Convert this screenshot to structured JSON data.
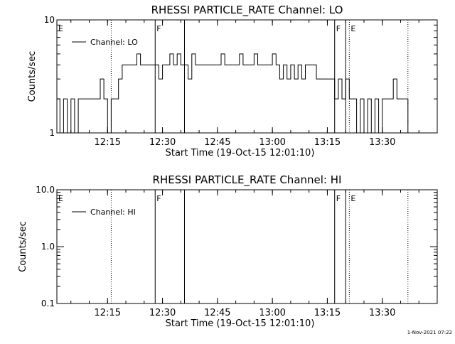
{
  "footer": {
    "timestamp": "1-Nov-2021 07:22"
  },
  "chart_data": [
    {
      "type": "line",
      "title": "RHESSI PARTICLE_RATE Channel: LO",
      "xlabel": "Start Time (19-Oct-15 12:01:10)",
      "ylabel": "Counts/sec",
      "y_scale": "log",
      "ylim": [
        1,
        10
      ],
      "y_ticks": [
        {
          "value": 1,
          "label": "1"
        },
        {
          "value": 10,
          "label": "10"
        }
      ],
      "xlim": [
        "12:01:10",
        "13:45:00"
      ],
      "x_ticks": [
        "12:15",
        "12:30",
        "12:45",
        "13:00",
        "13:15",
        "13:30"
      ],
      "legend": {
        "placement": "top-left",
        "entries": [
          "Channel: LO"
        ]
      },
      "flag_lines": [
        {
          "time": "12:01:10",
          "label": "E",
          "style": "none"
        },
        {
          "time": "12:16:00",
          "label": "",
          "style": "dotted"
        },
        {
          "time": "12:28:00",
          "label": "F",
          "style": "solid"
        },
        {
          "time": "12:36:00",
          "label": "",
          "style": "solid"
        },
        {
          "time": "13:17:00",
          "label": "F",
          "style": "solid"
        },
        {
          "time": "13:20:00",
          "label": "",
          "style": "solid"
        },
        {
          "time": "13:21:00",
          "label": "E",
          "style": "dotted"
        },
        {
          "time": "13:37:00",
          "label": "",
          "style": "dotted"
        }
      ],
      "series": [
        {
          "name": "Channel: LO",
          "x": [
            "12:01:10",
            "12:02:00",
            "12:03:00",
            "12:04:00",
            "12:05:00",
            "12:06:00",
            "12:07:00",
            "12:08:00",
            "12:09:00",
            "12:10:00",
            "12:11:00",
            "12:12:00",
            "12:13:00",
            "12:14:00",
            "12:15:00",
            "12:16:00",
            "12:17:00",
            "12:18:00",
            "12:19:00",
            "12:20:00",
            "12:21:00",
            "12:22:00",
            "12:23:00",
            "12:24:00",
            "12:25:00",
            "12:26:00",
            "12:27:00",
            "12:28:00",
            "12:29:00",
            "12:30:00",
            "12:31:00",
            "12:32:00",
            "12:33:00",
            "12:34:00",
            "12:35:00",
            "12:36:00",
            "12:37:00",
            "12:38:00",
            "12:39:00",
            "12:40:00",
            "12:41:00",
            "12:42:00",
            "12:43:00",
            "12:44:00",
            "12:45:00",
            "12:46:00",
            "12:47:00",
            "12:48:00",
            "12:49:00",
            "12:50:00",
            "12:51:00",
            "12:52:00",
            "12:53:00",
            "12:54:00",
            "12:55:00",
            "12:56:00",
            "12:57:00",
            "12:58:00",
            "12:59:00",
            "13:00:00",
            "13:01:00",
            "13:02:00",
            "13:03:00",
            "13:04:00",
            "13:05:00",
            "13:06:00",
            "13:07:00",
            "13:08:00",
            "13:09:00",
            "13:10:00",
            "13:11:00",
            "13:12:00",
            "13:13:00",
            "13:14:00",
            "13:15:00",
            "13:16:00",
            "13:17:00",
            "13:18:00",
            "13:19:00",
            "13:20:00",
            "13:21:00",
            "13:22:00",
            "13:23:00",
            "13:24:00",
            "13:25:00",
            "13:26:00",
            "13:27:00",
            "13:28:00",
            "13:29:00",
            "13:30:00",
            "13:31:00",
            "13:32:00",
            "13:33:00",
            "13:34:00",
            "13:35:00",
            "13:36:00",
            "13:37:00"
          ],
          "y": [
            2,
            1,
            2,
            1,
            2,
            1,
            2,
            2,
            2,
            2,
            2,
            2,
            3,
            2,
            1,
            2,
            2,
            3,
            4,
            4,
            4,
            4,
            5,
            4,
            4,
            4,
            4,
            4,
            3,
            4,
            4,
            5,
            4,
            5,
            4,
            4,
            3,
            5,
            4,
            4,
            4,
            4,
            4,
            4,
            4,
            5,
            4,
            4,
            4,
            4,
            5,
            4,
            4,
            4,
            5,
            4,
            4,
            4,
            4,
            5,
            4,
            3,
            4,
            3,
            4,
            3,
            4,
            3,
            4,
            4,
            4,
            3,
            3,
            3,
            3,
            3,
            2,
            3,
            2,
            3,
            2,
            2,
            1,
            2,
            1,
            2,
            1,
            2,
            1,
            2,
            2,
            2,
            3,
            2,
            2,
            2,
            1
          ]
        }
      ]
    },
    {
      "type": "line",
      "title": "RHESSI PARTICLE_RATE Channel: HI",
      "xlabel": "Start Time (19-Oct-15 12:01:10)",
      "ylabel": "Counts/sec",
      "y_scale": "log",
      "ylim": [
        0.1,
        10
      ],
      "y_ticks": [
        {
          "value": 0.1,
          "label": "0.1"
        },
        {
          "value": 1,
          "label": "1.0"
        },
        {
          "value": 10,
          "label": "10.0"
        }
      ],
      "xlim": [
        "12:01:10",
        "13:45:00"
      ],
      "x_ticks": [
        "12:15",
        "12:30",
        "12:45",
        "13:00",
        "13:15",
        "13:30"
      ],
      "legend": {
        "placement": "top-left",
        "entries": [
          "Channel: HI"
        ]
      },
      "flag_lines": [
        {
          "time": "12:01:10",
          "label": "E",
          "style": "none"
        },
        {
          "time": "12:16:00",
          "label": "",
          "style": "dotted"
        },
        {
          "time": "12:28:00",
          "label": "F",
          "style": "solid"
        },
        {
          "time": "12:36:00",
          "label": "",
          "style": "solid"
        },
        {
          "time": "13:17:00",
          "label": "F",
          "style": "solid"
        },
        {
          "time": "13:20:00",
          "label": "",
          "style": "solid"
        },
        {
          "time": "13:21:00",
          "label": "E",
          "style": "dotted"
        },
        {
          "time": "13:37:00",
          "label": "",
          "style": "dotted"
        }
      ],
      "series": [
        {
          "name": "Channel: HI",
          "x": [],
          "y": []
        }
      ]
    }
  ]
}
